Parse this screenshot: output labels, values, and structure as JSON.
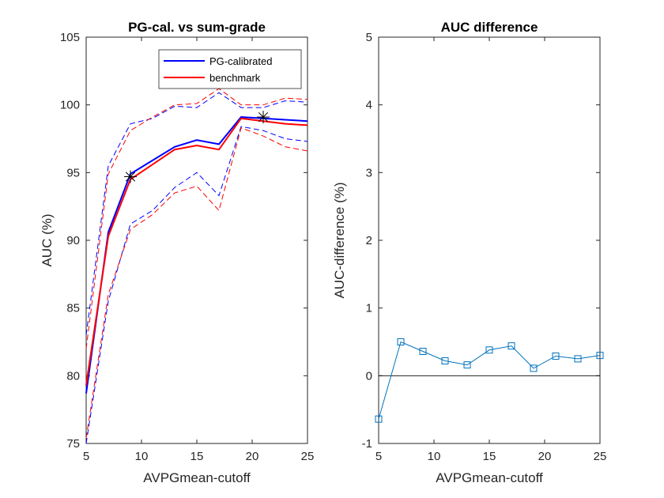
{
  "chart_data": [
    {
      "type": "line",
      "title": "PG-cal. vs sum-grade",
      "xlabel": "AVPGmean-cutoff",
      "ylabel": "AUC (%)",
      "xlim": [
        5,
        25
      ],
      "ylim": [
        75,
        105
      ],
      "xticks": [
        "5",
        "10",
        "15",
        "20",
        "25"
      ],
      "yticks": [
        "75",
        "80",
        "85",
        "90",
        "95",
        "100",
        "105"
      ],
      "legend_position": "top-right",
      "x": [
        5,
        7,
        9,
        11,
        13,
        15,
        17,
        19,
        21,
        23,
        25
      ],
      "series": [
        {
          "name": "PG-calibrated",
          "color": "#0000ff",
          "style": "solid",
          "values": [
            78.7,
            90.6,
            94.9,
            95.9,
            96.9,
            97.4,
            97.1,
            99.1,
            99.0,
            98.9,
            98.8
          ]
        },
        {
          "name": "benchmark",
          "color": "#ff0000",
          "style": "solid",
          "values": [
            79.3,
            90.3,
            94.5,
            95.6,
            96.7,
            97.0,
            96.7,
            99.0,
            98.8,
            98.6,
            98.5
          ]
        },
        {
          "color": "#0000ff",
          "style": "dashed",
          "values": [
            83.0,
            95.5,
            98.6,
            99.0,
            99.9,
            99.8,
            100.9,
            99.8,
            99.8,
            100.3,
            100.2
          ]
        },
        {
          "color": "#0000ff",
          "style": "dashed",
          "values": [
            75.0,
            85.5,
            91.2,
            92.2,
            93.9,
            95.0,
            93.3,
            98.4,
            98.1,
            97.5,
            97.3
          ]
        },
        {
          "color": "#ff0000",
          "style": "dashed",
          "values": [
            82.0,
            94.9,
            98.1,
            99.1,
            100.0,
            100.1,
            101.2,
            100.0,
            100.0,
            100.5,
            100.4
          ]
        },
        {
          "color": "#ff0000",
          "style": "dashed",
          "values": [
            75.4,
            86.0,
            90.8,
            91.9,
            93.5,
            94.0,
            92.2,
            98.3,
            97.7,
            96.9,
            96.6
          ]
        }
      ],
      "markers": [
        {
          "x": 9,
          "y": 94.7,
          "symbol": "star",
          "color": "#000000"
        },
        {
          "x": 21,
          "y": 99.1,
          "symbol": "star",
          "color": "#000000"
        }
      ]
    },
    {
      "type": "line",
      "title": "AUC difference",
      "xlabel": "AVPGmean-cutoff",
      "ylabel": "AUC-difference (%)",
      "xlim": [
        5,
        25
      ],
      "ylim": [
        -1,
        5
      ],
      "xticks": [
        "5",
        "10",
        "15",
        "20",
        "25"
      ],
      "yticks": [
        "-1",
        "0",
        "1",
        "2",
        "3",
        "4",
        "5"
      ],
      "reference_line_y": 0,
      "x": [
        5,
        7,
        9,
        11,
        13,
        15,
        17,
        19,
        21,
        23,
        25
      ],
      "series": [
        {
          "color": "#0072bd",
          "marker": "square",
          "values": [
            -0.64,
            0.5,
            0.36,
            0.22,
            0.16,
            0.38,
            0.44,
            0.11,
            0.29,
            0.25,
            0.3
          ]
        }
      ]
    }
  ]
}
